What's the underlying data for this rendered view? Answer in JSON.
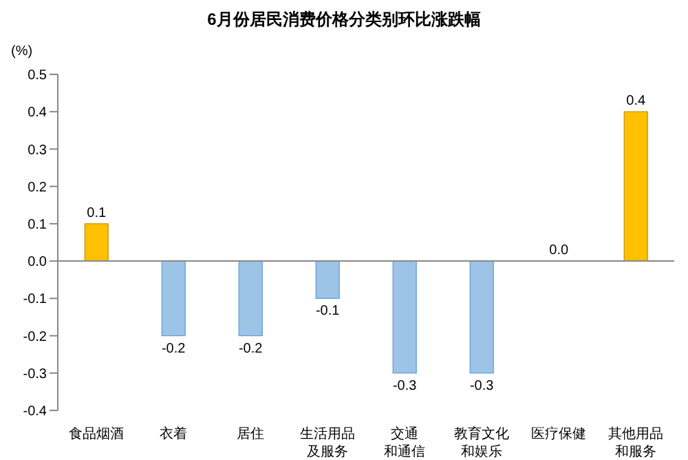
{
  "chart_data": {
    "type": "bar",
    "title": "6月份居民消费价格分类别环比涨跌幅",
    "ylabel": "(%)",
    "categories": [
      "食品烟酒",
      "衣着",
      "居住",
      "生活用品及服务",
      "交通和通信",
      "教育文化和娱乐",
      "医疗保健",
      "其他用品和服务"
    ],
    "values": [
      0.1,
      -0.2,
      -0.2,
      -0.1,
      -0.3,
      -0.3,
      0.0,
      0.4
    ],
    "colors": [
      "#ffc000",
      "#9dc3e6",
      "#9dc3e6",
      "#9dc3e6",
      "#9dc3e6",
      "#9dc3e6",
      "#9dc3e6",
      "#ffc000"
    ],
    "value_labels": [
      "0.1",
      "-0.2",
      "-0.2",
      "-0.1",
      "-0.3",
      "-0.3",
      "0.0",
      "0.4"
    ],
    "ylim": [
      -0.4,
      0.5
    ],
    "yticks": [
      0.5,
      0.4,
      0.3,
      0.2,
      0.1,
      {
        "value": 0,
        "label": "0.0"
      },
      -0.1,
      -0.2,
      -0.3,
      -0.4
    ],
    "ref_lines": [
      {
        "axis": "y",
        "value": 0,
        "color": "#888888"
      }
    ],
    "grid": false,
    "legend": false
  }
}
